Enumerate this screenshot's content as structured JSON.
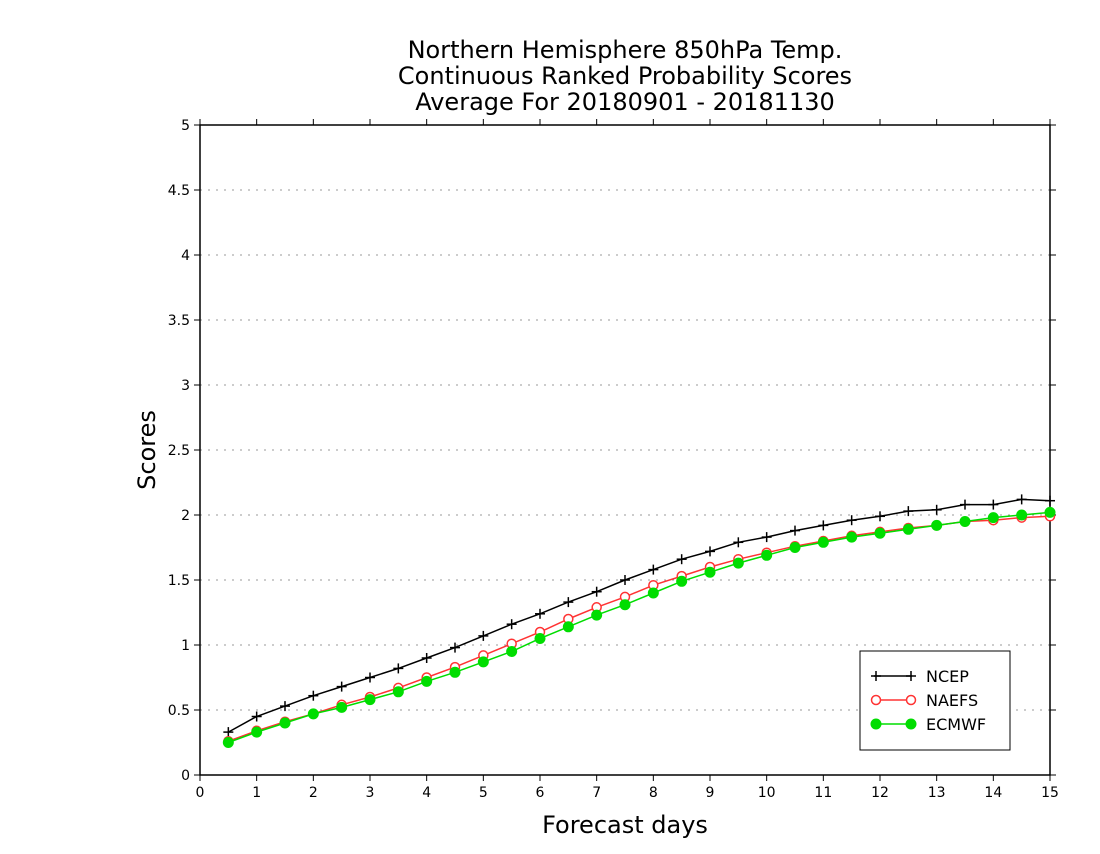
{
  "chart_data": {
    "type": "line",
    "title": [
      "Northern Hemisphere 850hPa Temp.",
      "Continuous Ranked Probability Scores",
      "Average For 20180901 - 20181130"
    ],
    "xlabel": "Forecast days",
    "ylabel": "Scores",
    "xlim": [
      0,
      15
    ],
    "ylim": [
      0,
      5
    ],
    "x_ticks": [
      "0",
      "1",
      "2",
      "3",
      "4",
      "5",
      "6",
      "7",
      "8",
      "9",
      "10",
      "11",
      "12",
      "13",
      "14",
      "15"
    ],
    "y_ticks": [
      "0",
      "0.5",
      "1",
      "1.5",
      "2",
      "2.5",
      "3",
      "3.5",
      "4",
      "4.5",
      "5"
    ],
    "grid": "horizontal-dotted",
    "legend_position": "bottom-right",
    "x": [
      0.5,
      1,
      1.5,
      2,
      2.5,
      3,
      3.5,
      4,
      4.5,
      5,
      5.5,
      6,
      6.5,
      7,
      7.5,
      8,
      8.5,
      9,
      9.5,
      10,
      10.5,
      11,
      11.5,
      12,
      12.5,
      13,
      13.5,
      14,
      14.5,
      15
    ],
    "series": [
      {
        "name": "NCEP",
        "color": "#000000",
        "marker": "plus",
        "values": [
          0.33,
          0.45,
          0.53,
          0.61,
          0.68,
          0.75,
          0.82,
          0.9,
          0.98,
          1.07,
          1.16,
          1.24,
          1.33,
          1.41,
          1.5,
          1.58,
          1.66,
          1.72,
          1.79,
          1.83,
          1.88,
          1.92,
          1.96,
          1.99,
          2.03,
          2.04,
          2.08,
          2.08,
          2.12,
          2.11
        ]
      },
      {
        "name": "NAEFS",
        "color": "#ff3333",
        "marker": "open-circle",
        "values": [
          0.26,
          0.34,
          0.41,
          0.47,
          0.54,
          0.6,
          0.67,
          0.75,
          0.83,
          0.92,
          1.01,
          1.1,
          1.2,
          1.29,
          1.37,
          1.46,
          1.53,
          1.6,
          1.66,
          1.71,
          1.76,
          1.8,
          1.84,
          1.87,
          1.9,
          1.92,
          1.95,
          1.96,
          1.98,
          1.99
        ]
      },
      {
        "name": "ECMWF",
        "color": "#00dd00",
        "marker": "filled-circle",
        "values": [
          0.25,
          0.33,
          0.4,
          0.47,
          0.52,
          0.58,
          0.64,
          0.72,
          0.79,
          0.87,
          0.95,
          1.05,
          1.14,
          1.23,
          1.31,
          1.4,
          1.49,
          1.56,
          1.63,
          1.69,
          1.75,
          1.79,
          1.83,
          1.86,
          1.89,
          1.92,
          1.95,
          1.98,
          2.0,
          2.02
        ]
      }
    ]
  }
}
